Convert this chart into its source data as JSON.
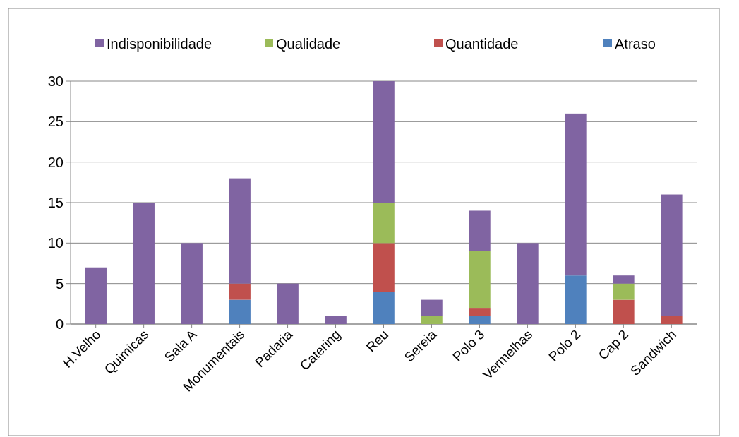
{
  "chart_data": {
    "type": "bar",
    "stacked": true,
    "categories": [
      "H.Velho",
      "Quimicas",
      "Sala A",
      "Monumentais",
      "Padaria",
      "Catering",
      "Reu",
      "Sereia",
      "Polo 3",
      "Vermelhas",
      "Polo 2",
      "Cap 2",
      "Sandwich"
    ],
    "series": [
      {
        "name": "Atraso",
        "color": "#4f81bd",
        "values": [
          0,
          0,
          0,
          3,
          0,
          0,
          4,
          0,
          1,
          0,
          6,
          0,
          0
        ]
      },
      {
        "name": "Quantidade",
        "color": "#c0504d",
        "values": [
          0,
          0,
          0,
          2,
          0,
          0,
          6,
          0,
          1,
          0,
          0,
          3,
          1
        ]
      },
      {
        "name": "Qualidade",
        "color": "#9bbb59",
        "values": [
          0,
          0,
          0,
          0,
          0,
          0,
          5,
          1,
          7,
          0,
          0,
          2,
          0
        ]
      },
      {
        "name": "Indisponibilidade",
        "color": "#8064a2",
        "values": [
          7,
          15,
          10,
          13,
          5,
          1,
          15,
          2,
          5,
          10,
          20,
          1,
          15
        ]
      }
    ],
    "ylim": [
      0,
      30
    ],
    "yticks": [
      0,
      5,
      10,
      15,
      20,
      25,
      30
    ],
    "grid": "y",
    "legend": "top"
  }
}
